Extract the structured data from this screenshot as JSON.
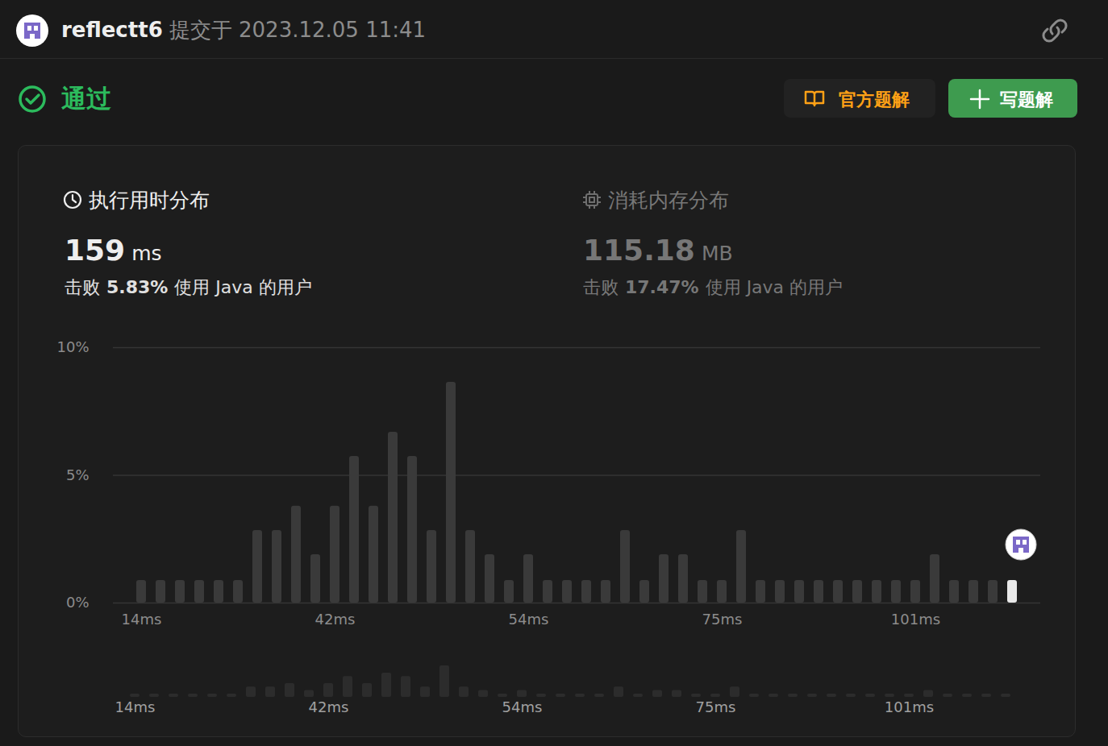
{
  "header": {
    "user": "reflectt6",
    "submitted": "提交于 2023.12.05 11:41"
  },
  "status": "通过",
  "buttons": [
    "官方题解",
    "写题解"
  ],
  "stats": [
    {
      "title": "执行用时分布",
      "value": "159",
      "unit": "ms",
      "beats": [
        "击败",
        "5.83%",
        "使用 Java 的用户"
      ]
    },
    {
      "title": "消耗内存分布",
      "value": "115.18",
      "unit": "MB",
      "beats": [
        "击败",
        "17.47%",
        "使用 Java 的用户"
      ]
    }
  ],
  "chart_data": {
    "type": "bar",
    "categories": [
      "14ms",
      null,
      null,
      null,
      null,
      null,
      null,
      null,
      null,
      null,
      "42ms",
      null,
      null,
      null,
      null,
      null,
      null,
      null,
      null,
      null,
      "54ms",
      null,
      null,
      null,
      null,
      null,
      null,
      null,
      null,
      null,
      "75ms",
      null,
      null,
      null,
      null,
      null,
      null,
      null,
      null,
      null,
      "101ms",
      null,
      null,
      null,
      null,
      null
    ],
    "values": [
      0.88,
      0.88,
      0.88,
      0.88,
      0.88,
      0.88,
      2.84,
      2.84,
      3.79,
      1.89,
      3.79,
      5.74,
      3.79,
      6.69,
      5.74,
      2.84,
      8.64,
      2.84,
      1.89,
      0.88,
      1.89,
      0.88,
      0.88,
      0.88,
      0.88,
      2.84,
      0.88,
      1.89,
      1.89,
      0.88,
      0.88,
      2.84,
      0.88,
      0.88,
      0.88,
      0.88,
      0.88,
      0.88,
      0.88,
      0.88,
      0.88,
      1.89,
      0.88,
      0.88,
      0.88,
      0.88
    ],
    "colors": [
      "#3a3a3a",
      "#3a3a3a",
      "#3a3a3a",
      "#3a3a3a",
      "#3a3a3a",
      "#3a3a3a",
      "#3a3a3a",
      "#3a3a3a",
      "#3a3a3a",
      "#3a3a3a",
      "#3a3a3a",
      "#3a3a3a",
      "#3a3a3a",
      "#3a3a3a",
      "#3a3a3a",
      "#3a3a3a",
      "#3a3a3a",
      "#3a3a3a",
      "#3a3a3a",
      "#3a3a3a",
      "#3a3a3a",
      "#3a3a3a",
      "#3a3a3a",
      "#3a3a3a",
      "#3a3a3a",
      "#3a3a3a",
      "#3a3a3a",
      "#3a3a3a",
      "#3a3a3a",
      "#3a3a3a",
      "#3a3a3a",
      "#3a3a3a",
      "#3a3a3a",
      "#3a3a3a",
      "#3a3a3a",
      "#3a3a3a",
      "#3a3a3a",
      "#3a3a3a",
      "#3a3a3a",
      "#3a3a3a",
      "#3a3a3a",
      "#3a3a3a",
      "#3a3a3a",
      "#3a3a3a",
      "#3a3a3a",
      "#e8e8e8"
    ],
    "ylim": [
      0,
      10
    ],
    "yticks": [
      {
        "value": 0,
        "label": "0%"
      },
      {
        "value": 5,
        "label": "5%"
      },
      {
        "value": 10,
        "label": "10%"
      }
    ],
    "grid": true
  }
}
